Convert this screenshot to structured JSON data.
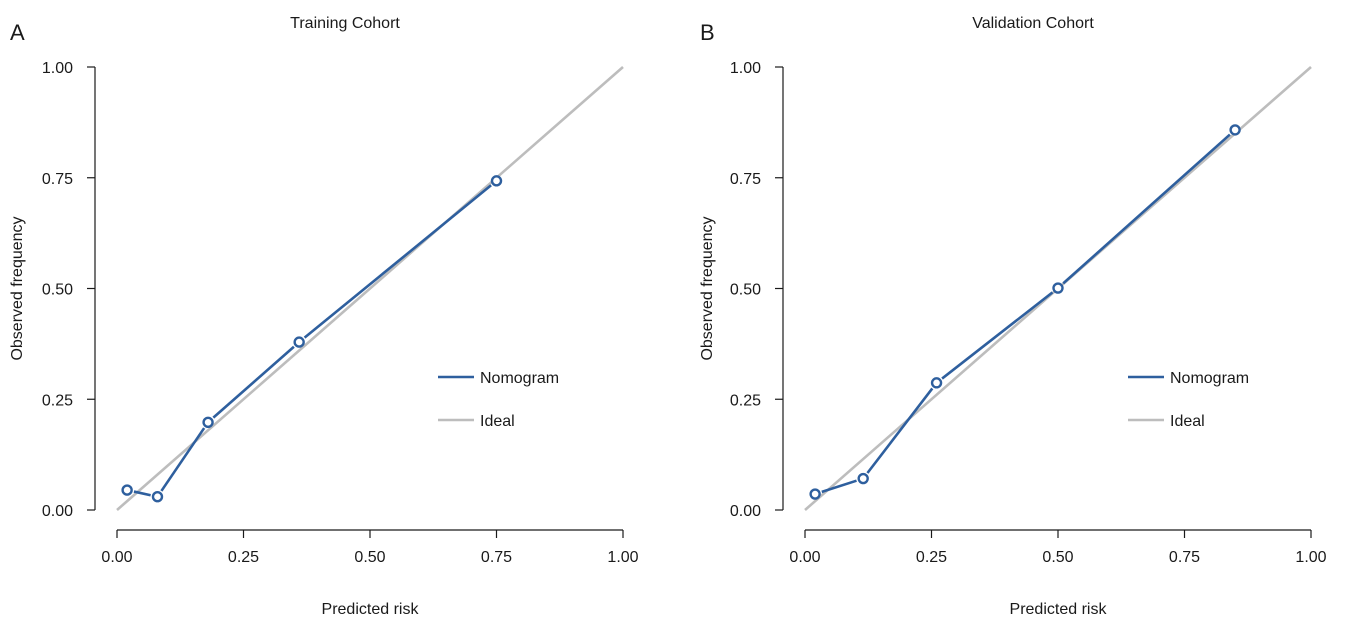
{
  "chart_data": [
    {
      "panel_label": "A",
      "type": "line",
      "title": "Training Cohort",
      "xlabel": "Predicted risk",
      "ylabel": "Observed frequency",
      "xlim": [
        0,
        1
      ],
      "ylim": [
        0,
        1
      ],
      "x_ticks": [
        "0.00",
        "0.25",
        "0.50",
        "0.75",
        "1.00"
      ],
      "y_ticks": [
        "0.00",
        "0.25",
        "0.50",
        "0.75",
        "1.00"
      ],
      "grid": false,
      "legend_position": "right",
      "series": [
        {
          "name": "Nomogram",
          "color": "#2e5f9e",
          "markers": "open-circle",
          "x": [
            0.02,
            0.08,
            0.18,
            0.36,
            0.75
          ],
          "y": [
            0.045,
            0.03,
            0.198,
            0.379,
            0.743
          ]
        },
        {
          "name": "Ideal",
          "color": "#bdbdbd",
          "x": [
            0,
            1
          ],
          "y": [
            0,
            1
          ]
        }
      ]
    },
    {
      "panel_label": "B",
      "type": "line",
      "title": "Validation Cohort",
      "xlabel": "Predicted risk",
      "ylabel": "Observed frequency",
      "xlim": [
        0,
        1
      ],
      "ylim": [
        0,
        1
      ],
      "x_ticks": [
        "0.00",
        "0.25",
        "0.50",
        "0.75",
        "1.00"
      ],
      "y_ticks": [
        "0.00",
        "0.25",
        "0.50",
        "0.75",
        "1.00"
      ],
      "grid": false,
      "legend_position": "right",
      "series": [
        {
          "name": "Nomogram",
          "color": "#2e5f9e",
          "markers": "open-circle",
          "x": [
            0.02,
            0.115,
            0.26,
            0.5,
            0.85
          ],
          "y": [
            0.036,
            0.071,
            0.287,
            0.501,
            0.858
          ]
        },
        {
          "name": "Ideal",
          "color": "#bdbdbd",
          "x": [
            0,
            1
          ],
          "y": [
            0,
            1
          ]
        }
      ]
    }
  ]
}
